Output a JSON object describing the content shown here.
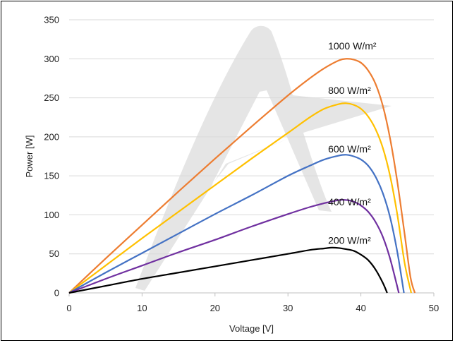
{
  "chart_data": {
    "type": "line",
    "title": "",
    "xlabel": "Voltage [V]",
    "ylabel": "Power [W]",
    "xlim": [
      0,
      50
    ],
    "ylim": [
      0,
      350
    ],
    "xticks": [
      0,
      10,
      20,
      30,
      40,
      50
    ],
    "yticks": [
      0,
      50,
      100,
      150,
      200,
      250,
      300,
      350
    ],
    "grid": "horizontal",
    "legend": "inline labels near curve peaks",
    "series": [
      {
        "name": "1000 W/m²",
        "color": "#ED7D31",
        "x": [
          0,
          5,
          10,
          15,
          20,
          25,
          30,
          33,
          35,
          37,
          38,
          39,
          40,
          41,
          42,
          43,
          44,
          45,
          46,
          46.8,
          47.4
        ],
        "y": [
          0,
          44,
          87,
          130,
          172,
          213,
          253,
          275,
          288,
          298,
          300,
          299,
          295,
          285,
          268,
          240,
          198,
          142,
          75,
          20,
          0
        ]
      },
      {
        "name": "800 W/m²",
        "color": "#FFC000",
        "x": [
          0,
          5,
          10,
          15,
          20,
          25,
          30,
          33,
          35,
          37,
          38,
          39,
          40,
          41,
          42,
          43,
          44,
          45,
          46,
          46.9
        ],
        "y": [
          0,
          35,
          70,
          104,
          138,
          172,
          205,
          225,
          236,
          242,
          243,
          241,
          236,
          226,
          210,
          186,
          150,
          100,
          38,
          0
        ]
      },
      {
        "name": "600 W/m²",
        "color": "#4472C4",
        "x": [
          0,
          5,
          10,
          15,
          20,
          25,
          30,
          33,
          35,
          37,
          38,
          39,
          40,
          41,
          42,
          43,
          44,
          45,
          45.9
        ],
        "y": [
          0,
          26,
          51,
          76,
          101,
          125,
          150,
          163,
          171,
          176,
          177,
          175,
          171,
          163,
          149,
          128,
          97,
          52,
          0
        ]
      },
      {
        "name": "400 W/m²",
        "color": "#7030A0",
        "x": [
          0,
          5,
          10,
          15,
          20,
          25,
          30,
          33,
          35,
          36,
          37,
          38,
          39,
          40,
          41,
          42,
          43,
          44,
          45.2
        ],
        "y": [
          0,
          18,
          35,
          52,
          68,
          85,
          101,
          110,
          115,
          117,
          119,
          119,
          117,
          112,
          104,
          91,
          72,
          44,
          0
        ]
      },
      {
        "name": "200 W/m²",
        "color": "#000000",
        "x": [
          0,
          5,
          10,
          15,
          20,
          25,
          30,
          33,
          35,
          36,
          37,
          38,
          39,
          40,
          41,
          42,
          43,
          43.6
        ],
        "y": [
          0,
          9,
          18,
          26,
          34,
          42,
          50,
          55,
          57,
          58,
          57.5,
          56,
          54,
          49,
          42,
          30,
          13,
          0
        ]
      }
    ],
    "labels": [
      {
        "text": "1000 W/m²",
        "x": 35.5,
        "y": 312
      },
      {
        "text": "800 W/m²",
        "x": 35.5,
        "y": 255
      },
      {
        "text": "600 W/m²",
        "x": 35.5,
        "y": 180
      },
      {
        "text": "400 W/m²",
        "x": 35.5,
        "y": 112
      },
      {
        "text": "200 W/m²",
        "x": 35.5,
        "y": 63
      }
    ]
  }
}
